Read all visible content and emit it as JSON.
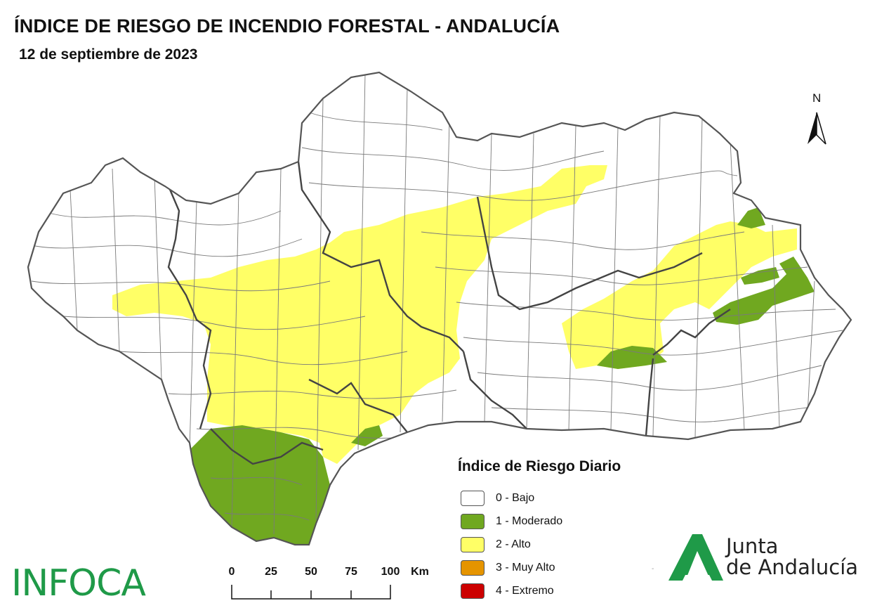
{
  "header": {
    "title": "ÍNDICE DE RIESGO DE INCENDIO FORESTAL - ANDALUCÍA",
    "date": "12 de septiembre de 2023"
  },
  "north_arrow": {
    "label": "N"
  },
  "legend": {
    "title": "Índice de Riesgo Diario",
    "items": [
      {
        "label": "0 - Bajo",
        "color": "#ffffff"
      },
      {
        "label": "1 - Moderado",
        "color": "#70a820"
      },
      {
        "label": "2 - Alto",
        "color": "#ffff66"
      },
      {
        "label": "3 - Muy Alto",
        "color": "#e59400"
      },
      {
        "label": "4 - Extremo",
        "color": "#cc0000"
      }
    ]
  },
  "scale_bar": {
    "ticks": [
      "0",
      "25",
      "50",
      "75",
      "100"
    ],
    "unit": "Km"
  },
  "branding": {
    "infoca": "INFOCA",
    "junta_line1": "Junta",
    "junta_line2": "de Andalucía",
    "junta_color": "#1f9a48"
  },
  "colors": {
    "boundary": "#666666",
    "province_border": "#444444"
  }
}
